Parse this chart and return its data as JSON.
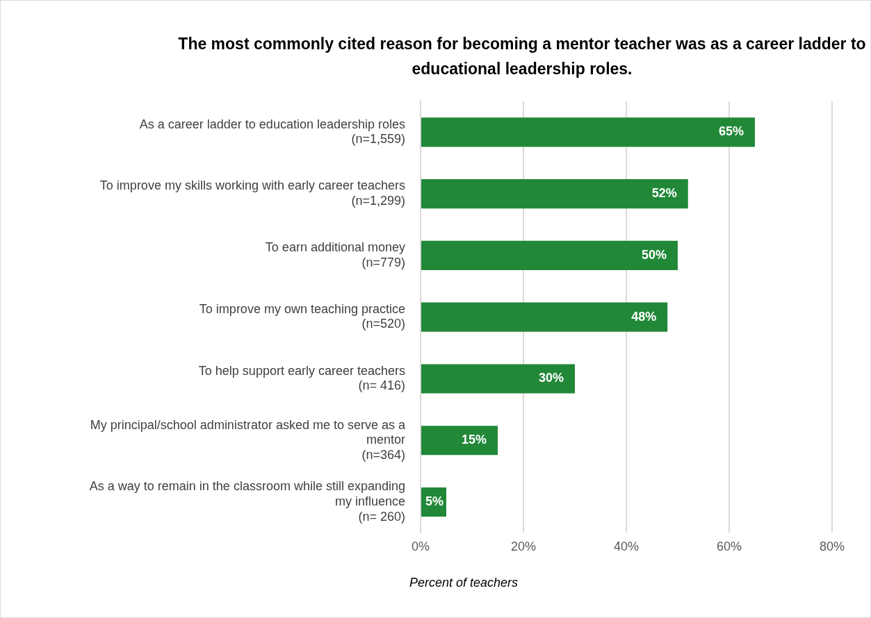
{
  "chart_data": {
    "type": "bar",
    "orientation": "horizontal",
    "title": "The most commonly cited reason for becoming a mentor teacher was as a career ladder to educational leadership roles.",
    "xlabel": "Percent of teachers",
    "categories": [
      "As a career ladder to education leadership roles\n(n=1,559)",
      "To improve my skills working with early career teachers\n(n=1,299)",
      "To earn additional money\n(n=779)",
      "To improve my own teaching practice\n(n=520)",
      "To help support early career teachers\n(n= 416)",
      "My principal/school administrator asked me to serve as a\nmentor\n(n=364)",
      "As a way to remain in the classroom while still expanding\nmy influence\n(n= 260)"
    ],
    "values": [
      65,
      52,
      50,
      48,
      30,
      15,
      5
    ],
    "value_labels": [
      "65%",
      "52%",
      "50%",
      "48%",
      "30%",
      "15%",
      "5%"
    ],
    "color": "#218838",
    "xlim": [
      0,
      80
    ],
    "xticks": [
      {
        "value": 0,
        "label": "0%"
      },
      {
        "value": 20,
        "label": "20%"
      },
      {
        "value": 40,
        "label": "40%"
      },
      {
        "value": 60,
        "label": "60%"
      },
      {
        "value": 80,
        "label": "80%"
      }
    ],
    "grid": "x",
    "legend": false
  }
}
